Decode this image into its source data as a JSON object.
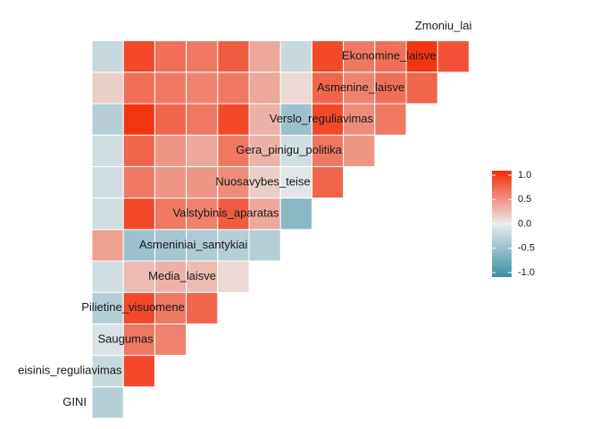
{
  "chart_data": {
    "type": "heatmap",
    "title": "",
    "xlabel": "",
    "ylabel": "",
    "variables": [
      "GINI",
      "Teisinis_reguliavimas",
      "Saugumas",
      "Pilietine_visuomene",
      "Media_laisve",
      "Asmeniniai_santykiai",
      "Valstybinis_aparatas",
      "Nuosavybes_teise",
      "Gera_pinigu_politika",
      "Verslo_reguliavimas",
      "Asmenine_laisve",
      "Ekonomine_laisve",
      "Zmoniu_lai"
    ],
    "labels": [
      "GINI",
      "eisinis_reguliavimas",
      "Saugumas",
      "Pilietine_visuomene",
      "Media_laisve",
      "Asmeniniai_santykiai",
      "Valstybinis_aparatas",
      "Nuosavybes_teise",
      "Gera_pinigu_politika",
      "Verslo_reguliavimas",
      "Asmenine_laisve",
      "Ekonomine_laisve",
      "Zmoniu_lai"
    ],
    "matrix": [
      [],
      [
        -0.3
      ],
      [
        -0.2,
        0.85
      ],
      [
        -0.1,
        0.6,
        0.55
      ],
      [
        -0.3,
        0.85,
        0.6,
        0.7
      ],
      [
        -0.15,
        0.25,
        0.3,
        0.25,
        0.1
      ],
      [
        0.4,
        -0.45,
        -0.4,
        -0.35,
        -0.3,
        -0.3
      ],
      [
        -0.15,
        0.85,
        0.6,
        0.55,
        0.75,
        0.35,
        -0.55
      ],
      [
        -0.15,
        0.6,
        0.45,
        0.45,
        0.5,
        0.15,
        -0.05,
        0.7
      ],
      [
        -0.15,
        0.7,
        0.45,
        0.35,
        0.6,
        0.3,
        -0.15,
        0.6,
        0.45
      ],
      [
        -0.3,
        0.95,
        0.7,
        0.6,
        0.85,
        0.3,
        -0.45,
        0.85,
        0.5,
        0.6
      ],
      [
        0.15,
        0.65,
        0.6,
        0.55,
        0.6,
        0.35,
        0.1,
        0.7,
        0.55,
        0.65,
        0.7
      ],
      [
        -0.2,
        0.85,
        0.65,
        0.6,
        0.75,
        0.35,
        -0.2,
        0.85,
        0.6,
        0.65,
        0.95,
        0.8
      ]
    ],
    "legend": {
      "ticks": [
        1.0,
        0.5,
        0.0,
        -0.5,
        -1.0
      ],
      "tick_labels": [
        "1.0",
        "0.5",
        "0.0",
        "-0.5",
        "-1.0"
      ],
      "range": [
        -1,
        1
      ],
      "placement": "right"
    },
    "colors": {
      "low": "#3a8fa5",
      "mid": "#ebebeb",
      "high": "#f22c08"
    }
  }
}
